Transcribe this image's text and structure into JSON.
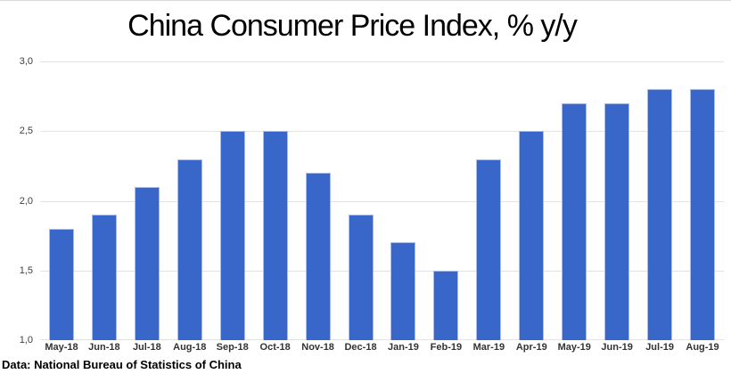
{
  "footer": "Data: National Bureau of Statistics of China",
  "chart_data": {
    "type": "bar",
    "title": "China Consumer Price Index, % y/y",
    "xlabel": "",
    "ylabel": "",
    "categories": [
      "May-18",
      "Jun-18",
      "Jul-18",
      "Aug-18",
      "Sep-18",
      "Oct-18",
      "Nov-18",
      "Dec-18",
      "Jan-19",
      "Feb-19",
      "Mar-19",
      "Apr-19",
      "May-19",
      "Jun-19",
      "Jul-19",
      "Aug-19"
    ],
    "values": [
      1.8,
      1.9,
      2.1,
      2.3,
      2.5,
      2.5,
      2.2,
      1.9,
      1.7,
      1.5,
      2.3,
      2.5,
      2.7,
      2.7,
      2.8,
      2.8
    ],
    "ylim": [
      1.0,
      3.0
    ],
    "ytick_labels": [
      "3,0",
      "2,5",
      "2,0",
      "1,5",
      "1,0"
    ],
    "grid": true,
    "legend": "none",
    "bar_color": "#3866c9",
    "bar_border_color": "#a9bce8",
    "gridline_color": "#e2e2e2"
  }
}
